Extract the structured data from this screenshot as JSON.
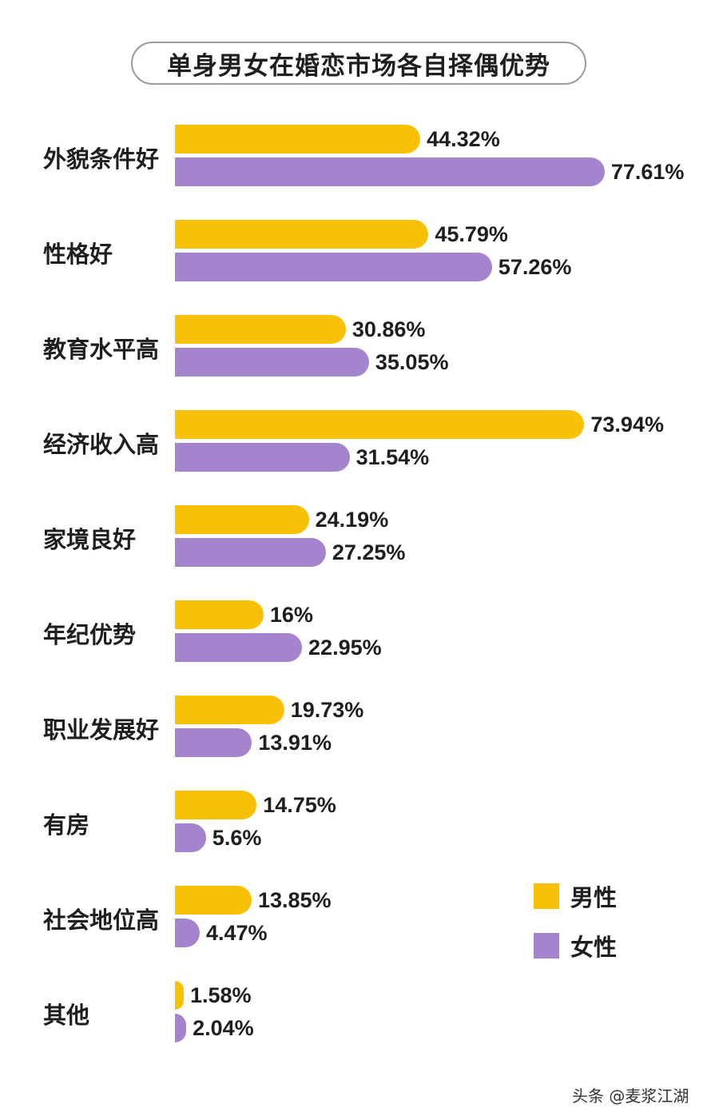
{
  "chart_data": {
    "type": "bar",
    "orientation": "horizontal",
    "title": "单身男女在婚恋市场各自择偶优势",
    "categories": [
      "外貌条件好",
      "性格好",
      "教育水平高",
      "经济收入高",
      "家境良好",
      "年纪优势",
      "职业发展好",
      "有房",
      "社会地位高",
      "其他"
    ],
    "series": [
      {
        "name": "男性",
        "color": "#f9c106",
        "values": [
          44.32,
          45.79,
          30.86,
          73.94,
          24.19,
          16,
          19.73,
          14.75,
          13.85,
          1.58
        ],
        "labels": [
          "44.32%",
          "45.79%",
          "30.86%",
          "73.94%",
          "24.19%",
          "16%",
          "19.73%",
          "14.75%",
          "13.85%",
          "1.58%"
        ]
      },
      {
        "name": "女性",
        "color": "#a484cc",
        "values": [
          77.61,
          57.26,
          35.05,
          31.54,
          27.25,
          22.95,
          13.91,
          5.6,
          4.47,
          2.04
        ],
        "labels": [
          "77.61%",
          "57.26%",
          "35.05%",
          "31.54%",
          "27.25%",
          "22.95%",
          "13.91%",
          "5.6%",
          "4.47%",
          "2.04%"
        ]
      }
    ],
    "xlabel": "",
    "ylabel": "",
    "unit": "%",
    "grid": false,
    "legend_position": "bottom-right"
  },
  "title": "单身男女在婚恋市场各自择偶优势",
  "legend": [
    {
      "label": "男性",
      "color": "#f9c106"
    },
    {
      "label": "女性",
      "color": "#a484cc"
    }
  ],
  "watermark": "头条 @麦浆江湖"
}
